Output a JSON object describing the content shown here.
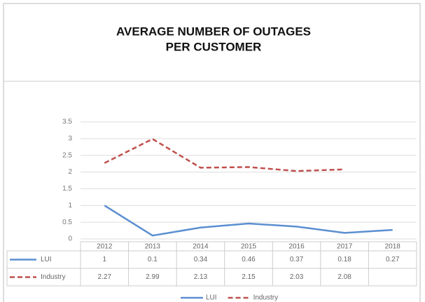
{
  "chart_data": {
    "type": "line",
    "title": [
      "AVERAGE NUMBER OF OUTAGES",
      "PER CUSTOMER"
    ],
    "categories": [
      "2012",
      "2013",
      "2014",
      "2015",
      "2016",
      "2017",
      "2018"
    ],
    "series": [
      {
        "name": "LUI",
        "color": "#5b8fd0",
        "dash": false,
        "values": [
          1,
          0.1,
          0.34,
          0.46,
          0.37,
          0.18,
          0.27
        ]
      },
      {
        "name": "Industry",
        "color": "#c0504d",
        "dash": true,
        "values": [
          2.27,
          2.99,
          2.13,
          2.15,
          2.03,
          2.08,
          null
        ]
      }
    ],
    "ylim": [
      0,
      3.5
    ],
    "yticks": [
      0,
      0.5,
      1,
      1.5,
      2,
      2.5,
      3,
      3.5
    ],
    "grid": true,
    "data_table": true,
    "legend": "bottom"
  }
}
